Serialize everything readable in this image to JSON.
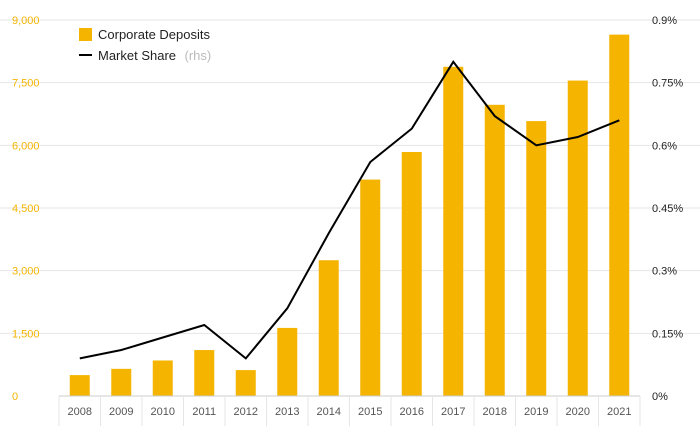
{
  "chart_data": {
    "type": "bar",
    "categories": [
      "2008",
      "2009",
      "2010",
      "2011",
      "2012",
      "2013",
      "2014",
      "2015",
      "2016",
      "2017",
      "2018",
      "2019",
      "2020",
      "2021"
    ],
    "series": [
      {
        "name": "Corporate Deposits",
        "type": "bar",
        "axis": "left",
        "color": "#f5b400",
        "values": [
          500,
          650,
          850,
          1100,
          620,
          1630,
          3250,
          5180,
          5840,
          7880,
          6970,
          6580,
          7550,
          8650
        ]
      },
      {
        "name": "Market Share",
        "name_suffix": "(rhs)",
        "type": "line",
        "axis": "right",
        "color": "#000000",
        "values": [
          0.09,
          0.11,
          0.14,
          0.17,
          0.09,
          0.21,
          0.39,
          0.56,
          0.64,
          0.8,
          0.67,
          0.6,
          0.62,
          0.66
        ]
      }
    ],
    "y_left": {
      "min": 0,
      "max": 9000,
      "ticks": [
        0,
        1500,
        3000,
        4500,
        6000,
        7500,
        9000
      ],
      "tick_labels": [
        "0",
        "1,500",
        "3,000",
        "4,500",
        "6,000",
        "7,500",
        "9,000"
      ]
    },
    "y_right": {
      "min": 0,
      "max": 0.9,
      "ticks": [
        0,
        0.15,
        0.3,
        0.45,
        0.6,
        0.75,
        0.9
      ],
      "tick_labels": [
        "0%",
        "0.15%",
        "0.3%",
        "0.45%",
        "0.6%",
        "0.75%",
        "0.9%"
      ]
    },
    "legend_position": "top-left",
    "grid": true,
    "colors": {
      "bar": "#f5b400",
      "line": "#000000",
      "left_ticks": "#f5b400",
      "grid": "#e6e6e6"
    }
  }
}
